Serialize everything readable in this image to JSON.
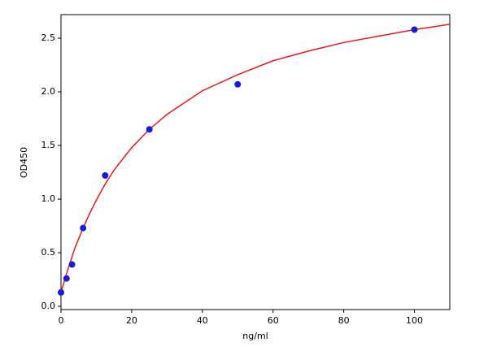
{
  "chart_data": {
    "type": "scatter",
    "xlabel": "ng/ml",
    "ylabel": "OD450",
    "xlim": [
      0,
      110
    ],
    "ylim": [
      -0.03,
      2.72
    ],
    "xticks": [
      0,
      20,
      40,
      60,
      80,
      100
    ],
    "yticks": [
      {
        "value": 0,
        "label": "0.0"
      },
      0.5,
      {
        "value": 1,
        "label": "1.0"
      },
      1.5,
      {
        "value": 2,
        "label": "2.0"
      },
      2.5
    ],
    "series": [
      {
        "kind": "line",
        "color": "#e41a1c",
        "x": [
          0,
          2,
          4,
          6,
          8,
          10,
          12.5,
          15,
          20,
          25,
          30,
          40,
          50,
          60,
          70,
          80,
          90,
          100,
          110
        ],
        "values": [
          0.13,
          0.35,
          0.55,
          0.71,
          0.86,
          0.99,
          1.14,
          1.27,
          1.48,
          1.65,
          1.79,
          2.01,
          2.16,
          2.29,
          2.38,
          2.46,
          2.52,
          2.58,
          2.63
        ]
      },
      {
        "kind": "points",
        "color": "#1a1adb",
        "x": [
          0,
          1.56,
          3.125,
          6.25,
          12.5,
          25,
          50,
          100
        ],
        "values": [
          0.13,
          0.26,
          0.39,
          0.73,
          1.22,
          1.65,
          2.07,
          2.58
        ]
      }
    ]
  }
}
